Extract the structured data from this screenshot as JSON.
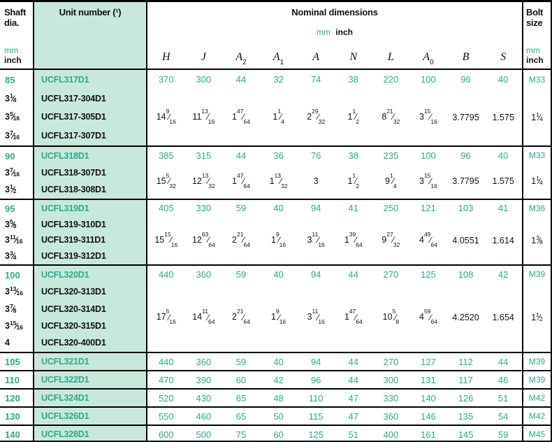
{
  "colors": {
    "teal": "#2aab8e",
    "mint": "#c9e8dc",
    "line": "#000000"
  },
  "header": {
    "shaft": {
      "line1": "Shaft",
      "line2": "dia.",
      "mm": "mm",
      "inch": "inch"
    },
    "unit": {
      "label": "Unit number (¹)"
    },
    "dims": {
      "title": "Nominal dimensions",
      "mm": "mm",
      "inch": "inch",
      "columns": [
        {
          "l": "H",
          "s": ""
        },
        {
          "l": "J",
          "s": ""
        },
        {
          "l": "A",
          "s": "2"
        },
        {
          "l": "A",
          "s": "1"
        },
        {
          "l": "A",
          "s": ""
        },
        {
          "l": "N",
          "s": ""
        },
        {
          "l": "L",
          "s": ""
        },
        {
          "l": "A",
          "s": "0"
        },
        {
          "l": "B",
          "s": ""
        },
        {
          "l": "S",
          "s": ""
        }
      ]
    },
    "bolt": {
      "line1": "Bolt",
      "line2": "size",
      "mm": "mm",
      "inch": "inch"
    }
  },
  "blocks": [
    {
      "shaft_mm": "85",
      "shaft_inch": [
        "3 1/4",
        "3 5/16",
        "3 7/16"
      ],
      "unit_primary": "UCFL317D1",
      "unit_rest": [
        "UCFL317-304D1",
        "UCFL317-305D1",
        "UCFL317-307D1"
      ],
      "mm": [
        "370",
        "300",
        "44",
        "32",
        "74",
        "38",
        "220",
        "100",
        "96",
        "40"
      ],
      "inch": [
        "14 9/16",
        "11 13/16",
        "1 47/64",
        "1 1/4",
        "2 29/32",
        "1 1/2",
        "8 21/32",
        "3 15/16",
        "3.7795",
        "1.575"
      ],
      "bolt_mm": "M33",
      "bolt_inch": "1 1/4"
    },
    {
      "shaft_mm": "90",
      "shaft_inch": [
        "3 7/16",
        "3 1/2"
      ],
      "unit_primary": "UCFL318D1",
      "unit_rest": [
        "UCFL318-307D1",
        "UCFL318-308D1"
      ],
      "mm": [
        "385",
        "315",
        "44",
        "36",
        "76",
        "38",
        "235",
        "100",
        "96",
        "40"
      ],
      "inch": [
        "15 5/32",
        "12 13/32",
        "1 47/64",
        "1 13/32",
        "3",
        "1 1/2",
        "9 1/4",
        "3 15/16",
        "3.7795",
        "1.575"
      ],
      "bolt_mm": "M33",
      "bolt_inch": "1 1/4"
    },
    {
      "shaft_mm": "95",
      "shaft_inch": [
        "3 5/8",
        "3 11/16",
        "3 3/4"
      ],
      "unit_primary": "UCFL319D1",
      "unit_rest": [
        "UCFL319-310D1",
        "UCFL319-311D1",
        "UCFL319-312D1"
      ],
      "mm": [
        "405",
        "330",
        "59",
        "40",
        "94",
        "41",
        "250",
        "121",
        "103",
        "41"
      ],
      "inch": [
        "15 15/16",
        "12 63/64",
        "2 21/64",
        "1 9/16",
        "3 11/16",
        "1 39/64",
        "9 27/32",
        "4 49/64",
        "4.0551",
        "1.614"
      ],
      "bolt_mm": "M36",
      "bolt_inch": "1 3/8"
    },
    {
      "shaft_mm": "100",
      "shaft_inch": [
        "3 13/16",
        "3 7/8",
        "3 15/16",
        "4"
      ],
      "unit_primary": "UCFL320D1",
      "unit_rest": [
        "UCFL320-313D1",
        "UCFL320-314D1",
        "UCFL320-315D1",
        "UCFL320-400D1"
      ],
      "mm": [
        "440",
        "360",
        "59",
        "40",
        "94",
        "44",
        "270",
        "125",
        "108",
        "42"
      ],
      "inch": [
        "17 5/16",
        "14 11/64",
        "2 21/64",
        "1 9/16",
        "3 11/16",
        "1 47/64",
        "10 5/8",
        "4 59/64",
        "4.2520",
        "1.654"
      ],
      "bolt_mm": "M39",
      "bolt_inch": "1 1/2"
    }
  ],
  "rows": [
    {
      "shaft_mm": "105",
      "unit": "UCFL321D1",
      "mm": [
        "440",
        "360",
        "59",
        "40",
        "94",
        "44",
        "270",
        "127",
        "112",
        "44"
      ],
      "bolt_mm": "M39"
    },
    {
      "shaft_mm": "110",
      "unit": "UCFL322D1",
      "mm": [
        "470",
        "390",
        "60",
        "42",
        "96",
        "44",
        "300",
        "131",
        "117",
        "46"
      ],
      "bolt_mm": "M39"
    },
    {
      "shaft_mm": "120",
      "unit": "UCFL324D1",
      "mm": [
        "520",
        "430",
        "65",
        "48",
        "110",
        "47",
        "330",
        "140",
        "126",
        "51"
      ],
      "bolt_mm": "M42"
    },
    {
      "shaft_mm": "130",
      "unit": "UCFL326D1",
      "mm": [
        "550",
        "460",
        "65",
        "50",
        "115",
        "47",
        "360",
        "146",
        "135",
        "54"
      ],
      "bolt_mm": "M42"
    },
    {
      "shaft_mm": "140",
      "unit": "UCFL328D1",
      "mm": [
        "600",
        "500",
        "75",
        "60",
        "125",
        "51",
        "400",
        "161",
        "145",
        "59"
      ],
      "bolt_mm": "M45"
    }
  ]
}
